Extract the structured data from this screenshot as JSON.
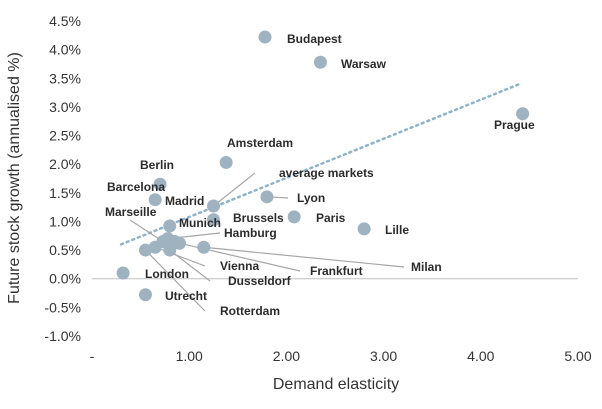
{
  "chart_data": {
    "type": "scatter",
    "xlabel": "Demand elasticity",
    "ylabel": "Future stock growth (annualised %)",
    "xlim": [
      0,
      5
    ],
    "ylim": [
      -1.0,
      4.5
    ],
    "x_ticks": [
      "-",
      "1.00",
      "2.00",
      "3.00",
      "4.00",
      "5.00"
    ],
    "y_ticks": [
      "-1.0%",
      "-0.5%",
      "0.0%",
      "0.5%",
      "1.0%",
      "1.5%",
      "2.0%",
      "2.5%",
      "3.0%",
      "3.5%",
      "4.0%",
      "4.5%"
    ],
    "trendline": {
      "style": "dotted",
      "color": "#8fb3c9",
      "from": [
        0.3,
        0.6
      ],
      "to": [
        4.4,
        3.4
      ]
    },
    "marker_color": "#9fb2c0",
    "points": [
      {
        "label": "Budapest",
        "x": 1.78,
        "y": 4.22
      },
      {
        "label": "Warsaw",
        "x": 2.35,
        "y": 3.78
      },
      {
        "label": "Prague",
        "x": 4.43,
        "y": 2.88
      },
      {
        "label": "Amsterdam",
        "x": 1.38,
        "y": 2.03
      },
      {
        "label": "Berlin",
        "x": 0.7,
        "y": 1.65
      },
      {
        "label": "Barcelona",
        "x": 0.65,
        "y": 1.38
      },
      {
        "label": "average markets",
        "x": 1.25,
        "y": 1.27
      },
      {
        "label": "Madrid",
        "x": 1.25,
        "y": 1.03
      },
      {
        "label": "Lyon",
        "x": 1.8,
        "y": 1.43
      },
      {
        "label": "Brussels",
        "x": 0.8,
        "y": 0.92
      },
      {
        "label": "Paris",
        "x": 2.08,
        "y": 1.08
      },
      {
        "label": "Lille",
        "x": 2.8,
        "y": 0.87
      },
      {
        "label": "Marseille",
        "x": 0.73,
        "y": 0.65
      },
      {
        "label": "Munich",
        "x": 0.85,
        "y": 0.65
      },
      {
        "label": "Hamburg",
        "x": 0.78,
        "y": 0.7
      },
      {
        "label": "Milan",
        "x": 1.15,
        "y": 0.55
      },
      {
        "label": "Frankfurt",
        "x": 0.9,
        "y": 0.62
      },
      {
        "label": "Vienna",
        "x": 0.65,
        "y": 0.55
      },
      {
        "label": "Dusseldorf",
        "x": 0.8,
        "y": 0.5
      },
      {
        "label": "London",
        "x": 0.32,
        "y": 0.1
      },
      {
        "label": "Rotterdam",
        "x": 0.55,
        "y": 0.5
      },
      {
        "label": "Utrecht",
        "x": 0.55,
        "y": -0.28
      }
    ]
  }
}
